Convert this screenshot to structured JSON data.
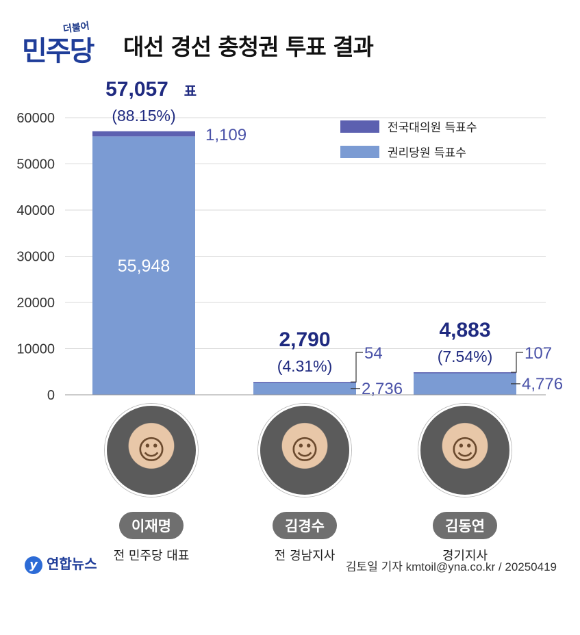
{
  "header": {
    "logo_small": "더불어",
    "logo_main": "민주당",
    "title": "대선 경선 충청권 투표 결과"
  },
  "legend": {
    "national_delegate": "전국대의원 득표수",
    "party_member": "권리당원 득표수"
  },
  "colors": {
    "national_delegate": "#5c60b0",
    "party_member": "#7b9bd3",
    "accent": "#1f2a80"
  },
  "chart_data": {
    "type": "bar",
    "stacked": true,
    "ylim": [
      0,
      60000
    ],
    "yticks": [
      "0",
      "10000",
      "20000",
      "30000",
      "40000",
      "50000",
      "60000"
    ],
    "grid": true,
    "legend_position": "top-right",
    "categories": [
      "이재명",
      "김경수",
      "김동연"
    ],
    "series": [
      {
        "name": "권리당원 득표수",
        "values": [
          55948,
          2736,
          4776
        ]
      },
      {
        "name": "전국대의원 득표수",
        "values": [
          1109,
          54,
          107
        ]
      }
    ],
    "totals": [
      57057,
      2790,
      4883
    ],
    "total_labels": [
      "57,057",
      "2,790",
      "4,883"
    ],
    "total_suffix": [
      "표",
      "",
      ""
    ],
    "pct_labels": [
      "(88.15%)",
      "(4.31%)",
      "(7.54%)"
    ],
    "member_labels": [
      "55,948",
      "2,736",
      "4,776"
    ],
    "delegate_labels": [
      "1,109",
      "54",
      "107"
    ]
  },
  "candidates": [
    {
      "name": "이재명",
      "role": "전 민주당 대표"
    },
    {
      "name": "김경수",
      "role": "전 경남지사"
    },
    {
      "name": "김동연",
      "role": "경기지사"
    }
  ],
  "footer": {
    "agency": "연합뉴스",
    "credit": "김토일 기자 kmtoil@yna.co.kr / 20250419"
  }
}
